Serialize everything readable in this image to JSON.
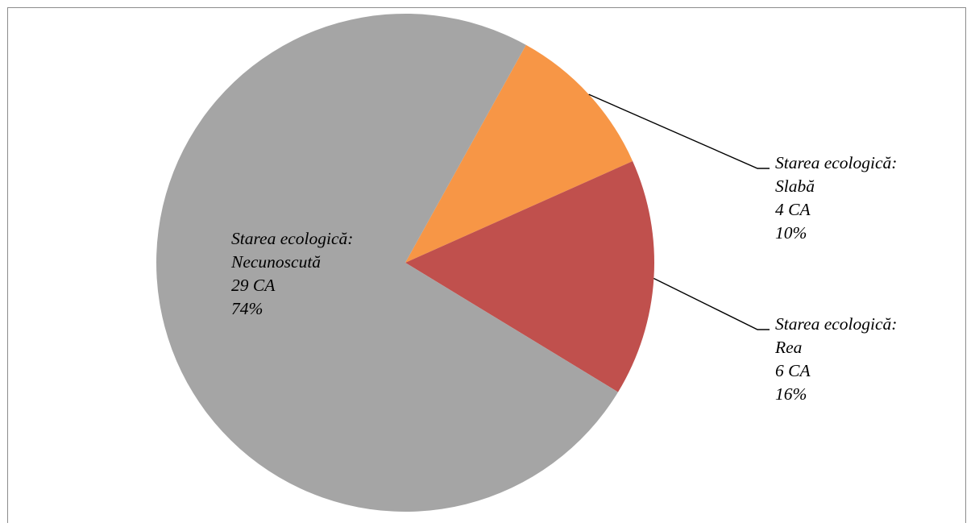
{
  "chart_data": {
    "type": "pie",
    "title": "",
    "legend": "none",
    "start_angle_deg": 29,
    "slices": [
      {
        "label_lines": [
          "Starea ecologică:",
          "Slabă",
          "4 CA",
          "10%"
        ],
        "category": "Starea ecologică: Slabă",
        "count_label": "4 CA",
        "percent_label": "10%",
        "value": 4,
        "percent": 10,
        "color": "#F79646"
      },
      {
        "label_lines": [
          "Starea ecologică:",
          "Rea",
          "6 CA",
          "16%"
        ],
        "category": "Starea ecologică: Rea",
        "count_label": "6 CA",
        "percent_label": "16%",
        "value": 6,
        "percent": 16,
        "color": "#C0504D"
      },
      {
        "label_lines": [
          "Starea ecologică:",
          "Necunoscută",
          "29 CA",
          "74%"
        ],
        "category": "Starea ecologică: Necunoscută",
        "count_label": "29 CA",
        "percent_label": "74%",
        "value": 29,
        "percent": 74,
        "color": "#A5A5A5"
      }
    ]
  }
}
